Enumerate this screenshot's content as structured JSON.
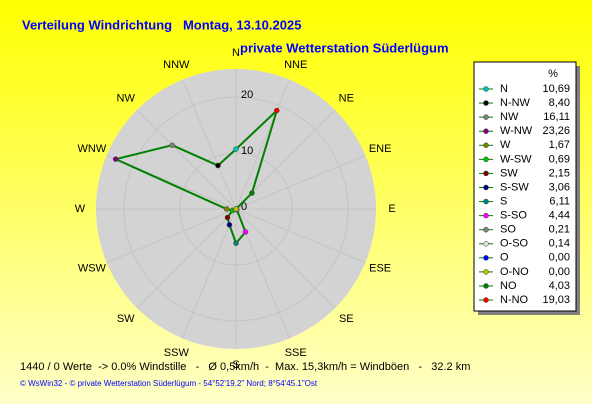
{
  "chart_data": {
    "type": "radar",
    "title": "Verteilung Windrichtung   Montag, 13.10.2025",
    "subtitle": "private Wetterstation Süderlügum",
    "categories": [
      "N",
      "NNW",
      "NW",
      "WNW",
      "W",
      "WSW",
      "SW",
      "SSW",
      "S",
      "SSE",
      "SE",
      "ESE",
      "E",
      "ENE",
      "NE",
      "NNE"
    ],
    "direction": "counterclockwise",
    "series": [
      {
        "color": "#008000",
        "values": [
          10.69,
          8.4,
          16.11,
          23.26,
          1.67,
          0.69,
          2.15,
          3.06,
          6.11,
          4.44,
          0.21,
          0.14,
          0.0,
          0.0,
          4.03,
          19.03
        ],
        "value_labels": [
          "10,69",
          "8,40",
          "16,11",
          "23,26",
          "1,67",
          "0,69",
          "2,15",
          "3,06",
          "6,11",
          "4,44",
          "0,21",
          "0,14",
          "0,00",
          "0,00",
          "4,03",
          "19,03"
        ],
        "marker_colors": [
          "#00c0c0",
          "#000000",
          "#808080",
          "#800080",
          "#808000",
          "#00c000",
          "#800000",
          "#000080",
          "#008080",
          "#ff00ff",
          "#808080",
          "#e0e0e0",
          "#0000ff",
          "#c0c000",
          "#008000",
          "#ff0000"
        ]
      }
    ],
    "legend_title": "%",
    "legend_labels": [
      "N",
      "N-NW",
      "NW",
      "W-NW",
      "W",
      "W-SW",
      "SW",
      "S-SW",
      "S",
      "S-SO",
      "SO",
      "O-SO",
      "O",
      "O-NO",
      "NO",
      "N-NO"
    ],
    "rlim": [
      0,
      25
    ],
    "rticks": [
      0,
      10,
      20
    ],
    "footer": "1440 / 0 Werte  -> 0.0% Windstille   -   Ø 0,5km/h  -  Max. 15,3km/h = Windböen   -   32.2 km",
    "credits": "© WsWin32  -  © private Wetterstation Süderlügum  -  54°52'19.2\" Nord; 8°54'45.1\"Ost"
  }
}
